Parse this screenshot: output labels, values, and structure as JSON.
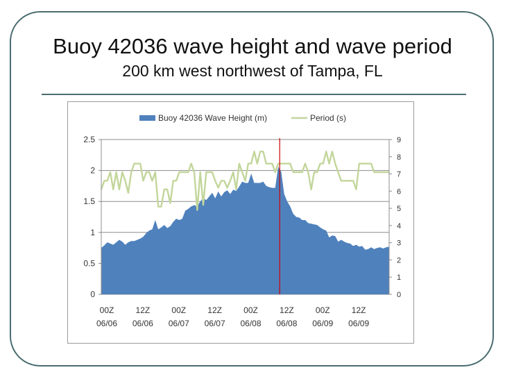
{
  "slide": {
    "title": "Buoy 42036 wave height and wave period",
    "subtitle": "200 km west northwest of Tampa, FL"
  },
  "colors": {
    "area_fill": "#4f81bd",
    "period_line": "#c3d69b",
    "marker": "#cc0000",
    "frame": "#4a6c6f"
  },
  "chart_data": {
    "type": "area",
    "title": "",
    "legend_position": "top",
    "x": {
      "range": [
        0,
        96
      ],
      "unit": "hours since 00Z 06/06",
      "tick_values": [
        0,
        12,
        24,
        36,
        48,
        60,
        72,
        84
      ],
      "tick_labels": [
        {
          "line1": "00Z",
          "line2": "06/06"
        },
        {
          "line1": "12Z",
          "line2": "06/06"
        },
        {
          "line1": "00Z",
          "line2": "06/07"
        },
        {
          "line1": "12Z",
          "line2": "06/07"
        },
        {
          "line1": "00Z",
          "line2": "06/08"
        },
        {
          "line1": "12Z",
          "line2": "06/08"
        },
        {
          "line1": "00Z",
          "line2": "06/09"
        },
        {
          "line1": "12Z",
          "line2": "06/09"
        }
      ]
    },
    "y_left": {
      "range": [
        0,
        2.5
      ],
      "ticks": [
        0,
        0.5,
        1,
        1.5,
        2,
        2.5
      ],
      "tick_labels": [
        "0",
        "0.5",
        "1",
        "1.5",
        "2",
        "2.5"
      ]
    },
    "y_right": {
      "range": [
        0,
        9
      ],
      "ticks": [
        0,
        1,
        2,
        3,
        4,
        5,
        6,
        7,
        8,
        9
      ],
      "tick_labels": [
        "0",
        "1",
        "2",
        "3",
        "4",
        "5",
        "6",
        "7",
        "8",
        "9"
      ]
    },
    "vertical_marker": {
      "x": 59.5,
      "label": ""
    },
    "series": [
      {
        "name": "Buoy 42036 Wave Height (m)",
        "axis": "left",
        "kind": "area",
        "points": [
          [
            0,
            0.75
          ],
          [
            1,
            0.79
          ],
          [
            2,
            0.84
          ],
          [
            3,
            0.82
          ],
          [
            4,
            0.8
          ],
          [
            5,
            0.84
          ],
          [
            6,
            0.88
          ],
          [
            7,
            0.85
          ],
          [
            8,
            0.8
          ],
          [
            9,
            0.84
          ],
          [
            10,
            0.86
          ],
          [
            11,
            0.86
          ],
          [
            12,
            0.88
          ],
          [
            13,
            0.9
          ],
          [
            14,
            0.93
          ],
          [
            15,
            0.99
          ],
          [
            16,
            1.03
          ],
          [
            17,
            1.05
          ],
          [
            18,
            1.2
          ],
          [
            19,
            1.05
          ],
          [
            20,
            1.08
          ],
          [
            21,
            1.12
          ],
          [
            22,
            1.07
          ],
          [
            23,
            1.1
          ],
          [
            24,
            1.17
          ],
          [
            25,
            1.22
          ],
          [
            26,
            1.2
          ],
          [
            27,
            1.22
          ],
          [
            28,
            1.35
          ],
          [
            29,
            1.38
          ],
          [
            30,
            1.42
          ],
          [
            31,
            1.44
          ],
          [
            32,
            1.42
          ],
          [
            33,
            1.5
          ],
          [
            34,
            1.56
          ],
          [
            35,
            1.52
          ],
          [
            36,
            1.58
          ],
          [
            37,
            1.64
          ],
          [
            38,
            1.55
          ],
          [
            39,
            1.66
          ],
          [
            40,
            1.58
          ],
          [
            41,
            1.65
          ],
          [
            42,
            1.68
          ],
          [
            43,
            1.62
          ],
          [
            44,
            1.69
          ],
          [
            45,
            1.67
          ],
          [
            46,
            1.74
          ],
          [
            47,
            1.82
          ],
          [
            48,
            1.8
          ],
          [
            49,
            1.8
          ],
          [
            50,
            1.95
          ],
          [
            51,
            1.8
          ],
          [
            52,
            1.8
          ],
          [
            53,
            1.8
          ],
          [
            54,
            1.82
          ],
          [
            55,
            1.75
          ],
          [
            56,
            1.73
          ],
          [
            57,
            1.72
          ],
          [
            58,
            1.72
          ],
          [
            59,
            2.06
          ],
          [
            60,
            1.98
          ],
          [
            61,
            1.62
          ],
          [
            62,
            1.5
          ],
          [
            63,
            1.42
          ],
          [
            64,
            1.3
          ],
          [
            65,
            1.25
          ],
          [
            66,
            1.24
          ],
          [
            67,
            1.2
          ],
          [
            68,
            1.2
          ],
          [
            69,
            1.15
          ],
          [
            70,
            1.14
          ],
          [
            71,
            1.13
          ],
          [
            72,
            1.12
          ],
          [
            73,
            1.08
          ],
          [
            74,
            1.05
          ],
          [
            75,
            1.03
          ],
          [
            76,
            0.92
          ],
          [
            77,
            0.95
          ],
          [
            78,
            0.94
          ],
          [
            79,
            0.85
          ],
          [
            80,
            0.88
          ],
          [
            81,
            0.85
          ],
          [
            82,
            0.83
          ],
          [
            83,
            0.82
          ],
          [
            84,
            0.78
          ],
          [
            85,
            0.8
          ],
          [
            86,
            0.77
          ],
          [
            87,
            0.78
          ],
          [
            88,
            0.72
          ],
          [
            89,
            0.73
          ],
          [
            90,
            0.76
          ],
          [
            91,
            0.73
          ],
          [
            92,
            0.75
          ],
          [
            93,
            0.76
          ],
          [
            94,
            0.74
          ],
          [
            95,
            0.76
          ],
          [
            96,
            0.77
          ]
        ]
      },
      {
        "name": "Period (s)",
        "axis": "right",
        "kind": "line",
        "points": [
          [
            0,
            6.1
          ],
          [
            1,
            6.6
          ],
          [
            2,
            6.6
          ],
          [
            3,
            7.1
          ],
          [
            4,
            6.1
          ],
          [
            5,
            7.1
          ],
          [
            6,
            6.1
          ],
          [
            7,
            7.1
          ],
          [
            8,
            6.6
          ],
          [
            9,
            5.9
          ],
          [
            10,
            7.1
          ],
          [
            11,
            7.6
          ],
          [
            12,
            7.6
          ],
          [
            13,
            7.6
          ],
          [
            14,
            6.6
          ],
          [
            15,
            7.1
          ],
          [
            16,
            7.1
          ],
          [
            17,
            6.6
          ],
          [
            18,
            7.1
          ],
          [
            19,
            5.1
          ],
          [
            20,
            5.1
          ],
          [
            21,
            6.1
          ],
          [
            22,
            6.1
          ],
          [
            23,
            5.3
          ],
          [
            24,
            6.6
          ],
          [
            25,
            6.6
          ],
          [
            26,
            7.1
          ],
          [
            27,
            7.1
          ],
          [
            28,
            7.1
          ],
          [
            29,
            7.1
          ],
          [
            30,
            7.6
          ],
          [
            31,
            7.1
          ],
          [
            32,
            4.9
          ],
          [
            33,
            7.1
          ],
          [
            34,
            5.2
          ],
          [
            35,
            7.1
          ],
          [
            36,
            7.1
          ],
          [
            37,
            7.1
          ],
          [
            38,
            6.6
          ],
          [
            39,
            6.2
          ],
          [
            40,
            6.6
          ],
          [
            41,
            6.6
          ],
          [
            42,
            6.2
          ],
          [
            43,
            6.6
          ],
          [
            44,
            7.1
          ],
          [
            45,
            6.1
          ],
          [
            46,
            7.6
          ],
          [
            47,
            7.1
          ],
          [
            48,
            6.6
          ],
          [
            49,
            7.6
          ],
          [
            50,
            7.6
          ],
          [
            51,
            8.3
          ],
          [
            52,
            7.6
          ],
          [
            53,
            8.3
          ],
          [
            54,
            8.3
          ],
          [
            55,
            7.6
          ],
          [
            56,
            7.6
          ],
          [
            57,
            7.6
          ],
          [
            58,
            7.1
          ],
          [
            59,
            7.6
          ],
          [
            60,
            7.6
          ],
          [
            61,
            7.6
          ],
          [
            62,
            7.6
          ],
          [
            63,
            7.6
          ],
          [
            64,
            7.1
          ],
          [
            65,
            7.1
          ],
          [
            66,
            7.1
          ],
          [
            67,
            7.1
          ],
          [
            68,
            7.6
          ],
          [
            69,
            7.1
          ],
          [
            70,
            6.1
          ],
          [
            71,
            7.1
          ],
          [
            72,
            7.1
          ],
          [
            73,
            7.6
          ],
          [
            74,
            7.6
          ],
          [
            75,
            8.3
          ],
          [
            76,
            7.6
          ],
          [
            77,
            8.3
          ],
          [
            78,
            7.6
          ],
          [
            79,
            7.1
          ],
          [
            80,
            6.6
          ],
          [
            81,
            6.6
          ],
          [
            82,
            6.6
          ],
          [
            83,
            6.6
          ],
          [
            84,
            6.6
          ],
          [
            85,
            6.1
          ],
          [
            86,
            7.6
          ],
          [
            87,
            7.6
          ],
          [
            88,
            7.6
          ],
          [
            89,
            7.6
          ],
          [
            90,
            7.6
          ],
          [
            91,
            7.1
          ],
          [
            92,
            7.1
          ],
          [
            93,
            7.1
          ],
          [
            94,
            7.1
          ],
          [
            95,
            7.1
          ],
          [
            96,
            7.1
          ]
        ]
      }
    ]
  }
}
